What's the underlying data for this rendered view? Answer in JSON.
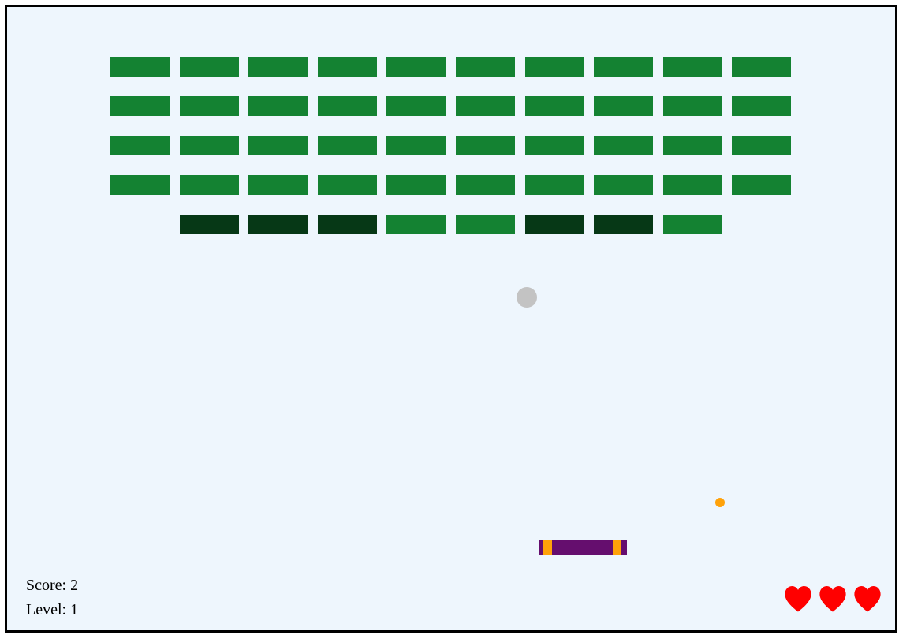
{
  "colors": {
    "background": "#eef6fd",
    "frame_border": "#000000",
    "brick_normal": "#148232",
    "brick_strong": "#063816",
    "ball_main": "#c3c3c3",
    "ball_small": "#ffa20a",
    "paddle_body": "#650e6e",
    "paddle_caps": "#ffa20a",
    "heart": "#ff0000"
  },
  "bricks": {
    "rows": [
      [
        "normal",
        "normal",
        "normal",
        "normal",
        "normal",
        "normal",
        "normal",
        "normal",
        "normal",
        "normal"
      ],
      [
        "normal",
        "normal",
        "normal",
        "normal",
        "normal",
        "normal",
        "normal",
        "normal",
        "normal",
        "normal"
      ],
      [
        "normal",
        "normal",
        "normal",
        "normal",
        "normal",
        "normal",
        "normal",
        "normal",
        "normal",
        "normal"
      ],
      [
        "normal",
        "normal",
        "normal",
        "normal",
        "normal",
        "normal",
        "normal",
        "normal",
        "normal",
        "normal"
      ],
      [
        "none",
        "strong",
        "strong",
        "strong",
        "normal",
        "normal",
        "strong",
        "strong",
        "normal",
        "none"
      ]
    ]
  },
  "hud": {
    "score_label": "Score: 2",
    "level_label": "Level: 1"
  },
  "lives": {
    "count": 3,
    "icon": "heart-icon"
  }
}
